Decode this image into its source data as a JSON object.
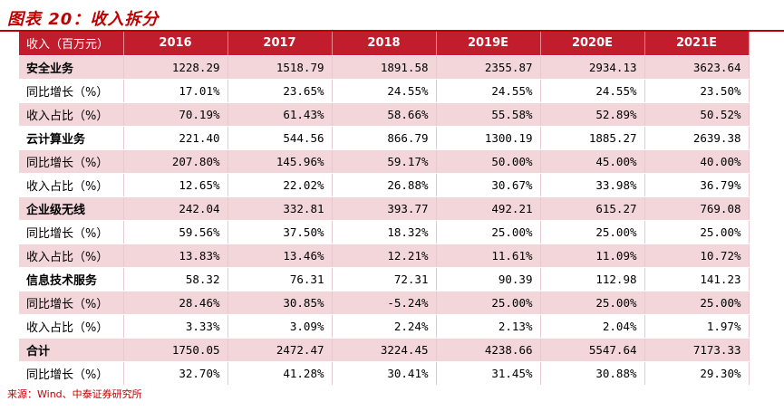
{
  "title": "图表 20：收入拆分",
  "source": "来源：Wind、中泰证券研究所",
  "header": [
    "收入（百万元）",
    "2016",
    "2017",
    "2018",
    "2019E",
    "2020E",
    "2021E"
  ],
  "rows": [
    {
      "label": "安全业务",
      "bold": true,
      "shade": true,
      "values": [
        "1228.29",
        "1518.79",
        "1891.58",
        "2355.87",
        "2934.13",
        "3623.64"
      ]
    },
    {
      "label": "同比增长（%）",
      "bold": false,
      "shade": false,
      "values": [
        "17.01%",
        "23.65%",
        "24.55%",
        "24.55%",
        "24.55%",
        "23.50%"
      ]
    },
    {
      "label": "收入占比（%）",
      "bold": false,
      "shade": true,
      "values": [
        "70.19%",
        "61.43%",
        "58.66%",
        "55.58%",
        "52.89%",
        "50.52%"
      ]
    },
    {
      "label": "云计算业务",
      "bold": true,
      "shade": false,
      "values": [
        "221.40",
        "544.56",
        "866.79",
        "1300.19",
        "1885.27",
        "2639.38"
      ]
    },
    {
      "label": "同比增长（%）",
      "bold": false,
      "shade": true,
      "values": [
        "207.80%",
        "145.96%",
        "59.17%",
        "50.00%",
        "45.00%",
        "40.00%"
      ]
    },
    {
      "label": "收入占比（%）",
      "bold": false,
      "shade": false,
      "values": [
        "12.65%",
        "22.02%",
        "26.88%",
        "30.67%",
        "33.98%",
        "36.79%"
      ]
    },
    {
      "label": "企业级无线",
      "bold": true,
      "shade": true,
      "values": [
        "242.04",
        "332.81",
        "393.77",
        "492.21",
        "615.27",
        "769.08"
      ]
    },
    {
      "label": "同比增长（%）",
      "bold": false,
      "shade": false,
      "values": [
        "59.56%",
        "37.50%",
        "18.32%",
        "25.00%",
        "25.00%",
        "25.00%"
      ]
    },
    {
      "label": "收入占比（%）",
      "bold": false,
      "shade": true,
      "values": [
        "13.83%",
        "13.46%",
        "12.21%",
        "11.61%",
        "11.09%",
        "10.72%"
      ]
    },
    {
      "label": "信息技术服务",
      "bold": true,
      "shade": false,
      "values": [
        "58.32",
        "76.31",
        "72.31",
        "90.39",
        "112.98",
        "141.23"
      ]
    },
    {
      "label": "同比增长（%）",
      "bold": false,
      "shade": true,
      "values": [
        "28.46%",
        "30.85%",
        "-5.24%",
        "25.00%",
        "25.00%",
        "25.00%"
      ]
    },
    {
      "label": "收入占比（%）",
      "bold": false,
      "shade": false,
      "values": [
        "3.33%",
        "3.09%",
        "2.24%",
        "2.13%",
        "2.04%",
        "1.97%"
      ]
    },
    {
      "label": "合计",
      "bold": true,
      "shade": true,
      "values": [
        "1750.05",
        "2472.47",
        "3224.45",
        "4238.66",
        "5547.64",
        "7173.33"
      ]
    },
    {
      "label": "同比增长（%）",
      "bold": false,
      "shade": false,
      "values": [
        "32.70%",
        "41.28%",
        "30.41%",
        "31.45%",
        "30.88%",
        "29.30%"
      ]
    }
  ]
}
